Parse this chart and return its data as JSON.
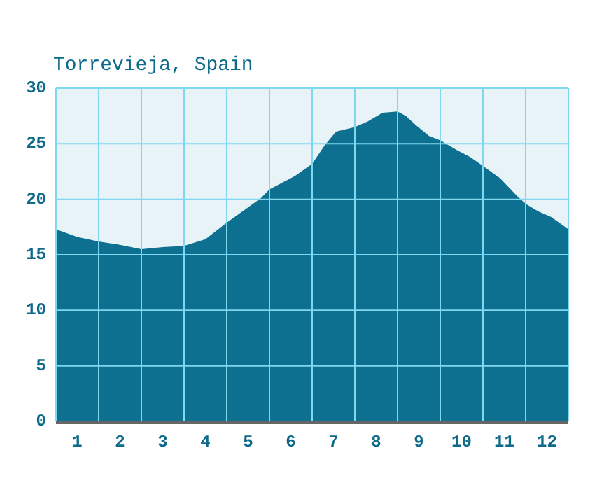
{
  "chart_data": {
    "type": "area",
    "title": "Torrevieja, Spain",
    "xlim": [
      0,
      12
    ],
    "ylim": [
      0,
      30
    ],
    "yticks": [
      0,
      5,
      10,
      15,
      20,
      25,
      30
    ],
    "xticks": [
      {
        "value": 0.5,
        "label": "1"
      },
      {
        "value": 1.5,
        "label": "2"
      },
      {
        "value": 2.5,
        "label": "3"
      },
      {
        "value": 3.5,
        "label": "4"
      },
      {
        "value": 4.5,
        "label": "5"
      },
      {
        "value": 5.5,
        "label": "6"
      },
      {
        "value": 6.5,
        "label": "7"
      },
      {
        "value": 7.5,
        "label": "8"
      },
      {
        "value": 8.5,
        "label": "9"
      },
      {
        "value": 9.5,
        "label": "10"
      },
      {
        "value": 10.5,
        "label": "11"
      },
      {
        "value": 11.5,
        "label": "12"
      },
      {
        "value": 1,
        "label": null
      },
      {
        "value": 2,
        "label": null
      },
      {
        "value": 3,
        "label": null
      },
      {
        "value": 4,
        "label": null
      },
      {
        "value": 5,
        "label": null
      },
      {
        "value": 6,
        "label": null
      },
      {
        "value": 7,
        "label": null
      },
      {
        "value": 8,
        "label": null
      },
      {
        "value": 9,
        "label": null
      },
      {
        "value": 10,
        "label": null
      },
      {
        "value": 11,
        "label": null
      }
    ],
    "grid": true,
    "series": [
      {
        "color": "#0e7090",
        "x": [
          0,
          0.5,
          1.0,
          1.5,
          2.0,
          2.5,
          3.0,
          3.5,
          4.0,
          4.4,
          4.8,
          5.0,
          5.25,
          5.6,
          6.0,
          6.3,
          6.56,
          7.0,
          7.3,
          7.65,
          8.0,
          8.2,
          8.42,
          8.74,
          9.0,
          9.4,
          9.7,
          10.0,
          10.4,
          10.8,
          11.0,
          11.3,
          11.6,
          12.0
        ],
        "values": [
          17.3,
          16.6,
          16.2,
          15.9,
          15.5,
          15.7,
          15.8,
          16.4,
          17.9,
          19.0,
          20.1,
          20.9,
          21.4,
          22.1,
          23.2,
          24.9,
          26.1,
          26.5,
          27.0,
          27.8,
          27.9,
          27.5,
          26.7,
          25.7,
          25.3,
          24.4,
          23.8,
          23.0,
          21.9,
          20.3,
          19.6,
          18.9,
          18.4,
          17.3
        ]
      }
    ]
  }
}
